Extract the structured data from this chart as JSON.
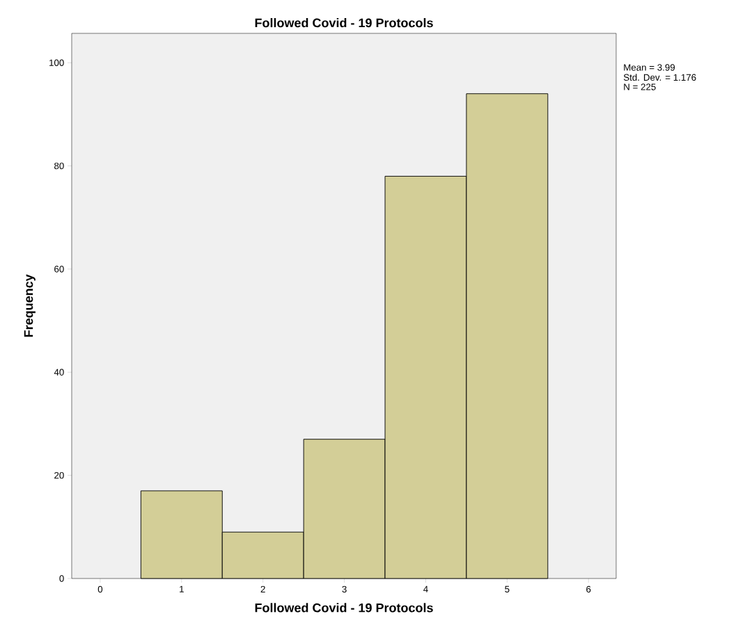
{
  "chart_data": {
    "type": "histogram",
    "title": "Followed Covid - 19 Protocols",
    "xlabel": "Followed Covid - 19 Protocols",
    "ylabel": "Frequency",
    "bins": [
      0.5,
      1.5,
      2.5,
      3.5,
      4.5,
      5.5
    ],
    "values": [
      17,
      9,
      27,
      78,
      94
    ],
    "color": "#d3ce97",
    "xlim": [
      -0.35,
      6.34
    ],
    "ylim": [
      0,
      105.7
    ],
    "xticks": [
      0,
      1,
      2,
      3,
      4,
      5,
      6
    ],
    "yticks": [
      0,
      20,
      40,
      60,
      80,
      100
    ],
    "annotations": [
      "Mean = 3.99",
      "Std. Dev. = 1.176",
      "N = 225"
    ],
    "grid": false
  }
}
